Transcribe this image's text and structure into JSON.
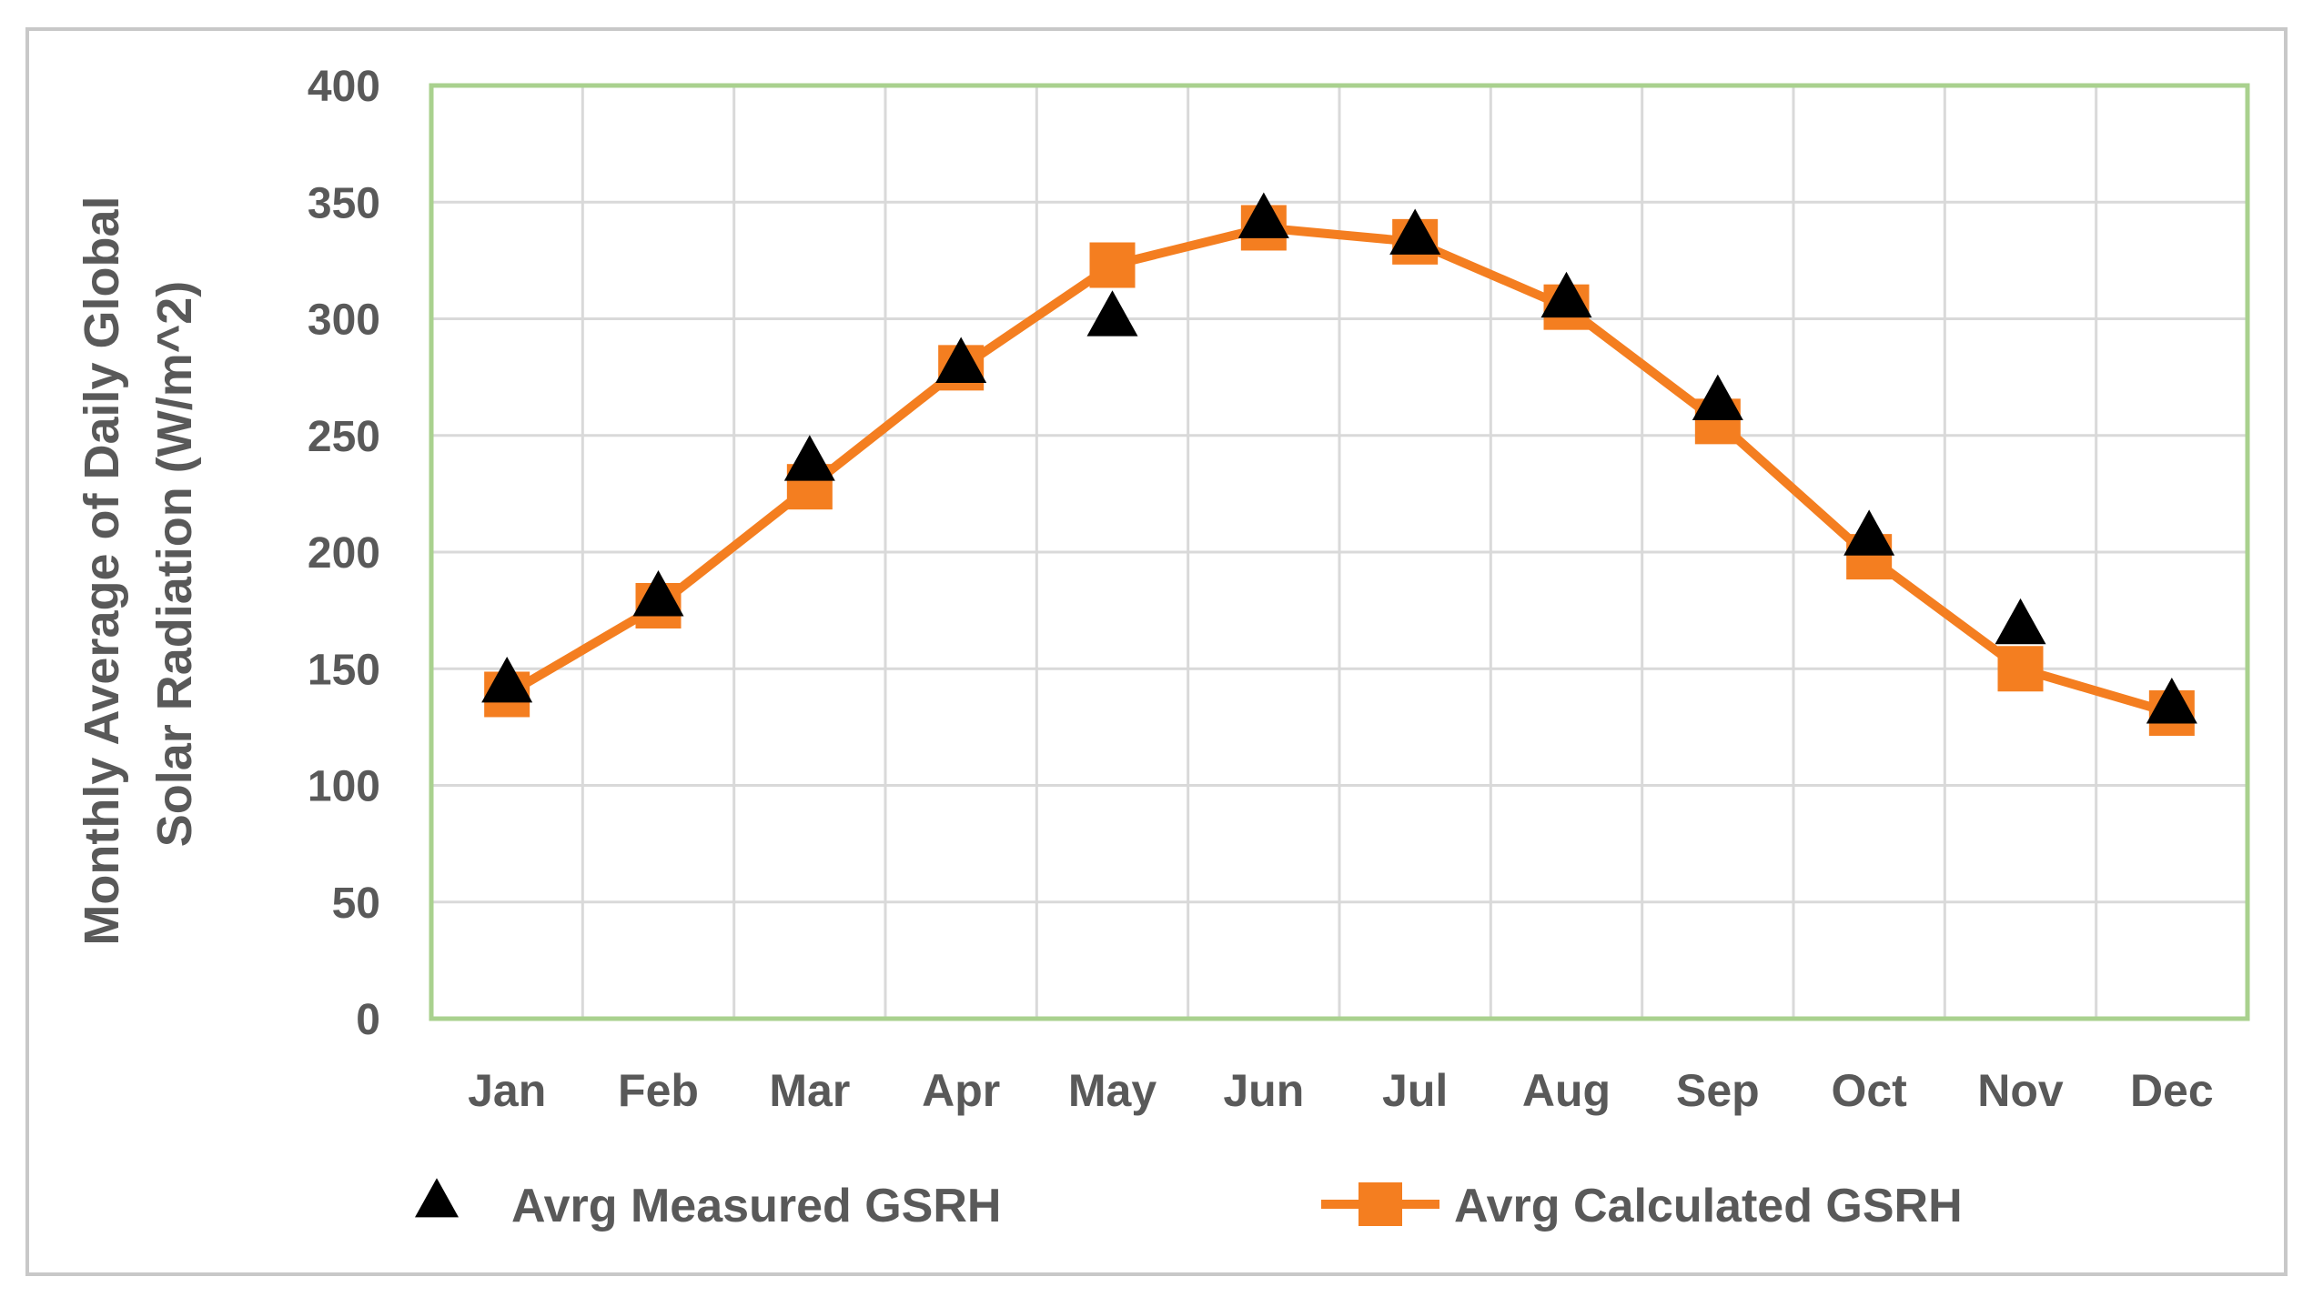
{
  "chart_data": {
    "type": "line",
    "categories": [
      "Jan",
      "Feb",
      "Mar",
      "Apr",
      "May",
      "Jun",
      "Jul",
      "Aug",
      "Sep",
      "Oct",
      "Nov",
      "Dec"
    ],
    "series": [
      {
        "name": "Avrg Measured GSRH",
        "marker": "triangle",
        "line": false,
        "color": "#000000",
        "values": [
          143,
          180,
          238,
          280,
          300,
          342,
          335,
          308,
          264,
          206,
          168,
          134
        ]
      },
      {
        "name": "Avrg Calculated GSRH",
        "marker": "square",
        "line": true,
        "color": "#f47e20",
        "values": [
          139,
          177,
          228,
          279,
          323,
          339,
          333,
          305,
          256,
          198,
          150,
          131
        ]
      }
    ],
    "ylabel_line1": "Monthly Average of Daily Global",
    "ylabel_line2": "Solar Radiation (W/m^2)",
    "ylim": [
      0,
      400
    ],
    "yticks": [
      0,
      50,
      100,
      150,
      200,
      250,
      300,
      350,
      400
    ],
    "grid": true,
    "legend": "bottom",
    "colors": {
      "plot_border": "#a9d18e",
      "grid": "#d9d9d9",
      "text": "#595959"
    }
  }
}
